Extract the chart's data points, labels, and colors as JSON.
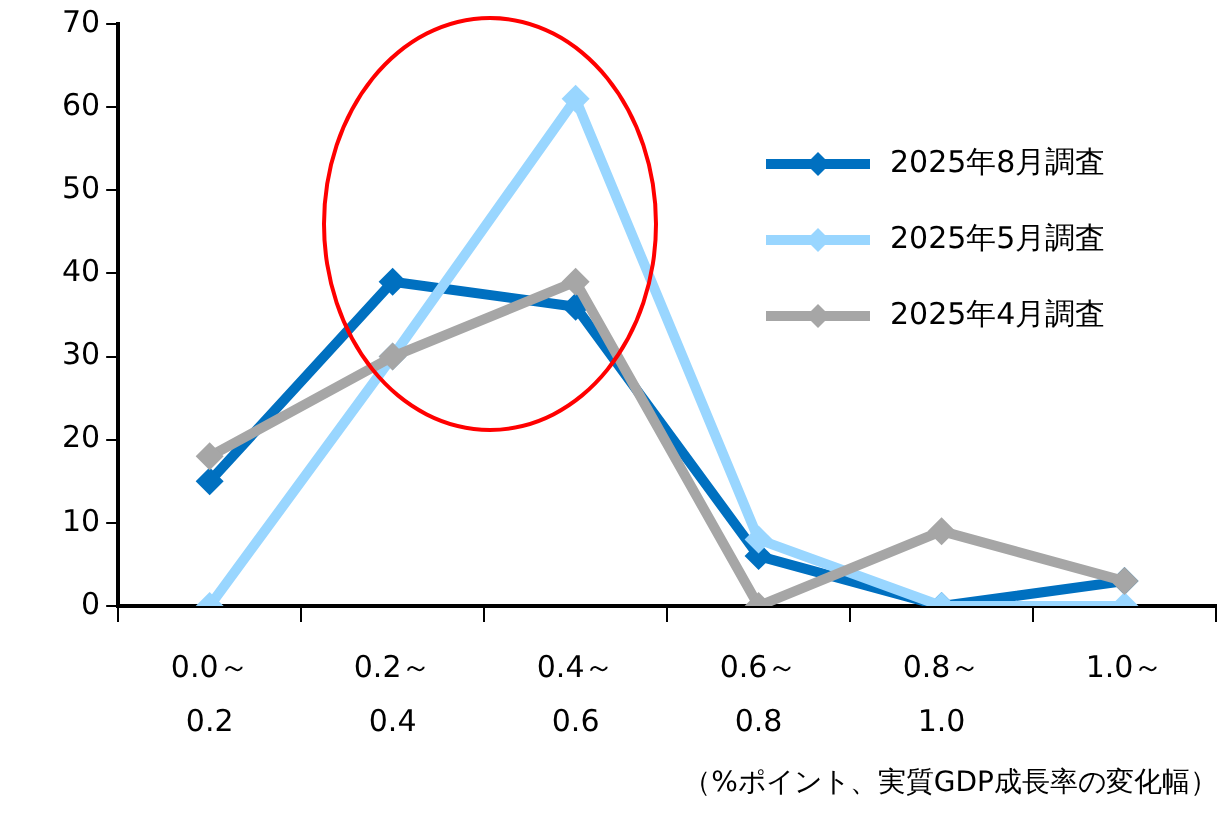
{
  "chart_data": {
    "type": "line",
    "categories": [
      [
        "0.0～",
        "0.2"
      ],
      [
        "0.2～",
        "0.4"
      ],
      [
        "0.4～",
        "0.6"
      ],
      [
        "0.6～",
        "0.8"
      ],
      [
        "0.8～",
        "1.0"
      ],
      [
        "1.0～"
      ]
    ],
    "annotations": [
      "（%ポイント、実質GDP成長率の変化幅）"
    ],
    "series": [
      {
        "name": "2025年8月調査",
        "color": "#0070c0",
        "values": [
          15,
          39,
          36,
          6,
          0,
          3
        ]
      },
      {
        "name": "2025年5月調査",
        "color": "#99d6ff",
        "values": [
          0,
          30,
          61,
          8,
          0,
          0
        ]
      },
      {
        "name": "2025年4月調査",
        "color": "#a6a6a6",
        "values": [
          18,
          30,
          39,
          0,
          9,
          3
        ]
      }
    ],
    "ylim": [
      0,
      70
    ],
    "yticks": [
      0,
      10,
      20,
      30,
      40,
      50,
      60,
      70
    ],
    "grid": false,
    "legend": "right",
    "marker": "diamond",
    "line_style": "solid"
  }
}
